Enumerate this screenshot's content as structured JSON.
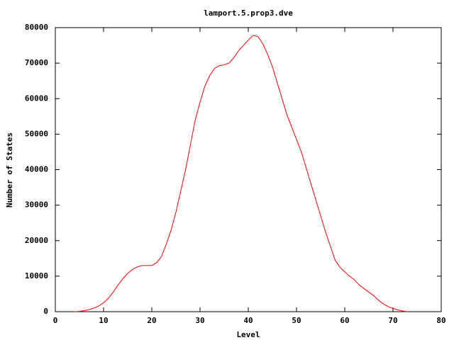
{
  "chart_data": {
    "type": "line",
    "title": "lamport.5.prop3.dve",
    "xlabel": "Level",
    "ylabel": "Number of States",
    "x": [
      4,
      5,
      6,
      7,
      8,
      9,
      10,
      11,
      12,
      13,
      14,
      15,
      16,
      17,
      18,
      19,
      20,
      21,
      22,
      23,
      24,
      25,
      26,
      27,
      28,
      29,
      30,
      31,
      32,
      33,
      34,
      35,
      36,
      37,
      38,
      39,
      40,
      41,
      42,
      43,
      44,
      45,
      46,
      47,
      48,
      49,
      50,
      51,
      52,
      53,
      54,
      55,
      56,
      57,
      58,
      59,
      60,
      61,
      62,
      63,
      64,
      65,
      66,
      67,
      68,
      69,
      70,
      71,
      72,
      73
    ],
    "series": [
      {
        "name": "lamport.5.prop3.dve",
        "color": "#ff0000",
        "values": [
          0,
          100,
          300,
          600,
          1000,
          1600,
          2500,
          3800,
          5500,
          7500,
          9300,
          10800,
          11900,
          12600,
          13000,
          13000,
          13000,
          13800,
          15500,
          19000,
          23000,
          28000,
          34000,
          40000,
          47000,
          54000,
          59000,
          63500,
          66500,
          68500,
          69300,
          69500,
          70000,
          71500,
          73500,
          75000,
          76500,
          77800,
          77500,
          75500,
          72500,
          69000,
          64500,
          60000,
          55500,
          52000,
          48500,
          45000,
          40500,
          36000,
          31500,
          27000,
          22500,
          18500,
          14500,
          12500,
          11200,
          10000,
          9000,
          7500,
          6500,
          5500,
          4500,
          3200,
          2200,
          1400,
          900,
          500,
          200,
          0
        ]
      }
    ],
    "xlim": [
      0,
      80
    ],
    "xticks": [
      0,
      10,
      20,
      30,
      40,
      50,
      60,
      70,
      80
    ],
    "ylim": [
      0,
      80000
    ],
    "yticks": [
      0,
      10000,
      20000,
      30000,
      40000,
      50000,
      60000,
      70000,
      80000
    ],
    "grid": false
  }
}
